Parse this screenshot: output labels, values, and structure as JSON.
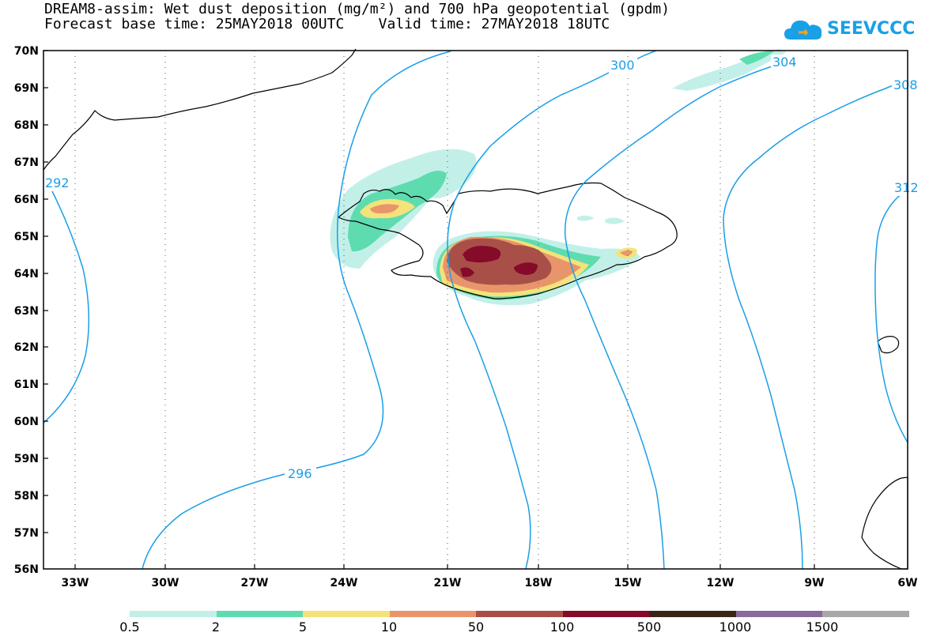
{
  "title_line1": "DREAM8-assim: Wet dust deposition (mg/m²) and 700 hPa geopotential (gpdm)",
  "title_line2": "Forecast base time: 25MAY2018 00UTC    Valid time: 27MAY2018 18UTC",
  "logo": {
    "text": "SEEVCCC",
    "icon": "cloud-icon",
    "color": "#1aa0e6"
  },
  "map": {
    "lat_labels": [
      "70N",
      "69N",
      "68N",
      "67N",
      "66N",
      "65N",
      "64N",
      "63N",
      "62N",
      "61N",
      "60N",
      "59N",
      "58N",
      "57N",
      "56N"
    ],
    "lon_labels": [
      "33W",
      "30W",
      "27W",
      "24W",
      "21W",
      "18W",
      "15W",
      "12W",
      "9W",
      "6W"
    ],
    "contour_labels": [
      "296",
      "300",
      "304",
      "308",
      "312",
      "292"
    ],
    "contour_color": "#1a9ee8"
  },
  "legend": {
    "labels": [
      "0.5",
      "2",
      "5",
      "10",
      "50",
      "100",
      "500",
      "1000",
      "1500"
    ],
    "colors": [
      "#c2f0e8",
      "#5edcb0",
      "#f4e27a",
      "#e8956c",
      "#a85048",
      "#860a2a",
      "#3a2418",
      "#8a6a9a",
      "#a8a8a8"
    ]
  }
}
